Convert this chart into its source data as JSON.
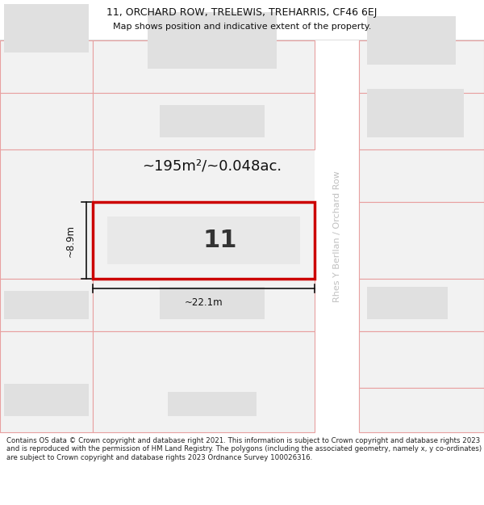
{
  "title_line1": "11, ORCHARD ROW, TRELEWIS, TREHARRIS, CF46 6EJ",
  "title_line2": "Map shows position and indicative extent of the property.",
  "footer_text": "Contains OS data © Crown copyright and database right 2021. This information is subject to Crown copyright and database rights 2023 and is reproduced with the permission of HM Land Registry. The polygons (including the associated geometry, namely x, y co-ordinates) are subject to Crown copyright and database rights 2023 Ordnance Survey 100026316.",
  "bg_color": "#f2f2f2",
  "white": "#ffffff",
  "plot_line_color": "#e8a0a0",
  "highlight_color": "#cc0000",
  "building_color": "#e0e0e0",
  "building_color2": "#e8e8e8",
  "dim_color": "#222222",
  "street_label_color": "#c0c0c0",
  "street_label": "Rhes Y Berllan / Orchard Row",
  "area_label": "~195m²/~0.048ac.",
  "width_label": "~22.1m",
  "height_label": "~8.9m",
  "plot_number": "11",
  "title_fontsize": 9.0,
  "subtitle_fontsize": 8.0,
  "footer_fontsize": 6.2,
  "area_fontsize": 13,
  "number_fontsize": 22,
  "dim_fontsize": 8.5,
  "street_fontsize": 8.0
}
